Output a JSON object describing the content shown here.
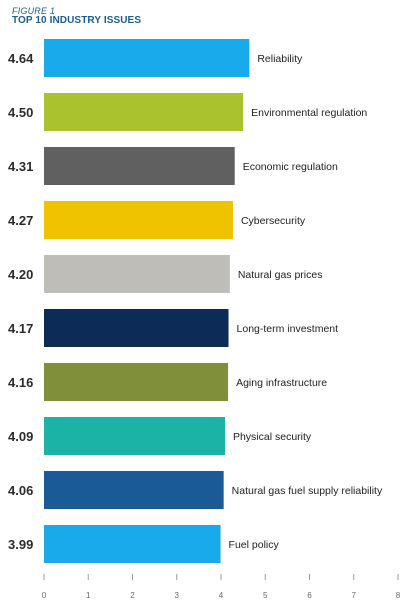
{
  "figure": {
    "label": "FIGURE 1",
    "title": "TOP 10 INDUSTRY ISSUES"
  },
  "chart_data": {
    "type": "bar",
    "orientation": "horizontal",
    "title": "TOP 10 INDUSTRY ISSUES",
    "categories": [
      "Reliability",
      "Environmental regulation",
      "Economic regulation",
      "Cybersecurity",
      "Natural gas prices",
      "Long-term investment",
      "Aging infrastructure",
      "Physical security",
      "Natural gas fuel supply reliability",
      "Fuel policy"
    ],
    "values": [
      4.64,
      4.5,
      4.31,
      4.27,
      4.2,
      4.17,
      4.16,
      4.09,
      4.06,
      3.99
    ],
    "value_labels": [
      "4.64",
      "4.50",
      "4.31",
      "4.27",
      "4.20",
      "4.17",
      "4.16",
      "4.09",
      "4.06",
      "3.99"
    ],
    "colors": [
      "#18aaeb",
      "#a9c22d",
      "#5f605f",
      "#f0c300",
      "#bebdb7",
      "#0c2b56",
      "#7f8f3a",
      "#1ab3a6",
      "#1a5a96",
      "#18aaeb"
    ],
    "x_ticks": [
      "0",
      "1",
      "2",
      "3",
      "4",
      "5",
      "6",
      "7",
      "8"
    ],
    "xlim": [
      0,
      8
    ],
    "grid": false,
    "legend": "none"
  }
}
